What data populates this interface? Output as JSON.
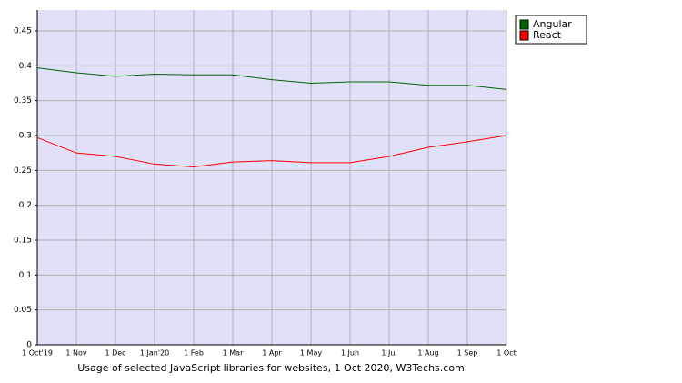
{
  "chart_data": {
    "type": "line",
    "caption": "Usage of selected JavaScript libraries for websites, 1 Oct 2020, W3Techs.com",
    "categories": [
      "1 Oct'19",
      "1 Nov",
      "1 Dec",
      "1 Jan'20",
      "1 Feb",
      "1 Mar",
      "1 Apr",
      "1 May",
      "1 Jun",
      "1 Jul",
      "1 Aug",
      "1 Sep",
      "1 Oct"
    ],
    "series": [
      {
        "name": "Angular",
        "color": "#006400",
        "values": [
          0.397,
          0.39,
          0.385,
          0.388,
          0.387,
          0.387,
          0.38,
          0.375,
          0.377,
          0.377,
          0.372,
          0.372,
          0.366
        ]
      },
      {
        "name": "React",
        "color": "#ff0000",
        "values": [
          0.297,
          0.275,
          0.27,
          0.259,
          0.255,
          0.262,
          0.264,
          0.261,
          0.261,
          0.27,
          0.283,
          0.291,
          0.3
        ]
      }
    ],
    "ylim": [
      0,
      0.48
    ],
    "yticks": [
      0,
      0.05,
      0.1,
      0.15,
      0.2,
      0.25,
      0.3,
      0.35,
      0.4,
      0.45
    ],
    "grid": true,
    "legend": "top-right"
  }
}
